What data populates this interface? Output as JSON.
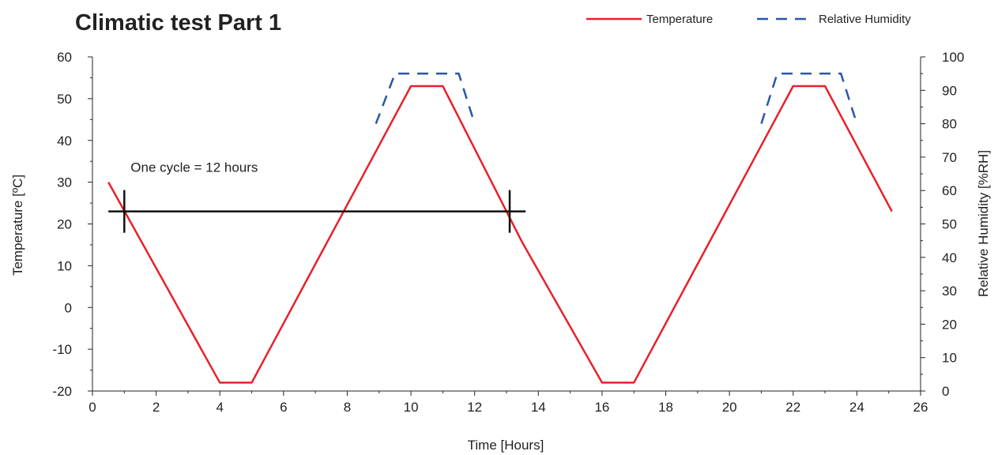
{
  "chart_data": {
    "type": "line",
    "title": "Climatic test Part 1",
    "xlabel": "Time [Hours]",
    "ylabel": "Temperature [ºC]",
    "y2label": "Relative Humidity [%RH]",
    "xlim": [
      0,
      26
    ],
    "ylim": [
      -20,
      60
    ],
    "y2lim": [
      0,
      100
    ],
    "x_ticks": [
      "0",
      "2",
      "4",
      "6",
      "8",
      "10",
      "12",
      "14",
      "16",
      "18",
      "20",
      "22",
      "24",
      "26"
    ],
    "y_ticks": [
      "-20",
      "-10",
      "0",
      "10",
      "20",
      "30",
      "40",
      "50",
      "60"
    ],
    "y2_ticks": [
      "0",
      "10",
      "20",
      "30",
      "40",
      "50",
      "60",
      "70",
      "80",
      "90",
      "100"
    ],
    "grid": false,
    "legend_position": "top-right",
    "series": [
      {
        "name": "Temperature",
        "axis": "left",
        "color": "#e8202a",
        "style": "solid",
        "x": [
          0.5,
          4.0,
          5.0,
          10.0,
          11.0,
          13.5,
          16.0,
          17.0,
          22.0,
          23.0,
          25.1
        ],
        "y": [
          30,
          -18,
          -18,
          53,
          53,
          15.5,
          -18,
          -18,
          53,
          53,
          23
        ]
      },
      {
        "name": "Relative Humidity",
        "axis": "right",
        "color": "#2a56a8",
        "style": "dashed",
        "segments": [
          {
            "x": [
              8.9,
              9.5,
              11.5,
              12.0
            ],
            "y": [
              80,
              95,
              95,
              80
            ]
          },
          {
            "x": [
              21.0,
              21.5,
              23.5,
              24.0
            ],
            "y": [
              80,
              95,
              95,
              80
            ]
          }
        ]
      }
    ],
    "annotation": {
      "text": "One cycle = 12 hours",
      "x_start": 1.0,
      "x_end": 13.1,
      "y": 23,
      "line_x_extent": [
        0.5,
        13.6
      ],
      "color": "#111111"
    }
  }
}
